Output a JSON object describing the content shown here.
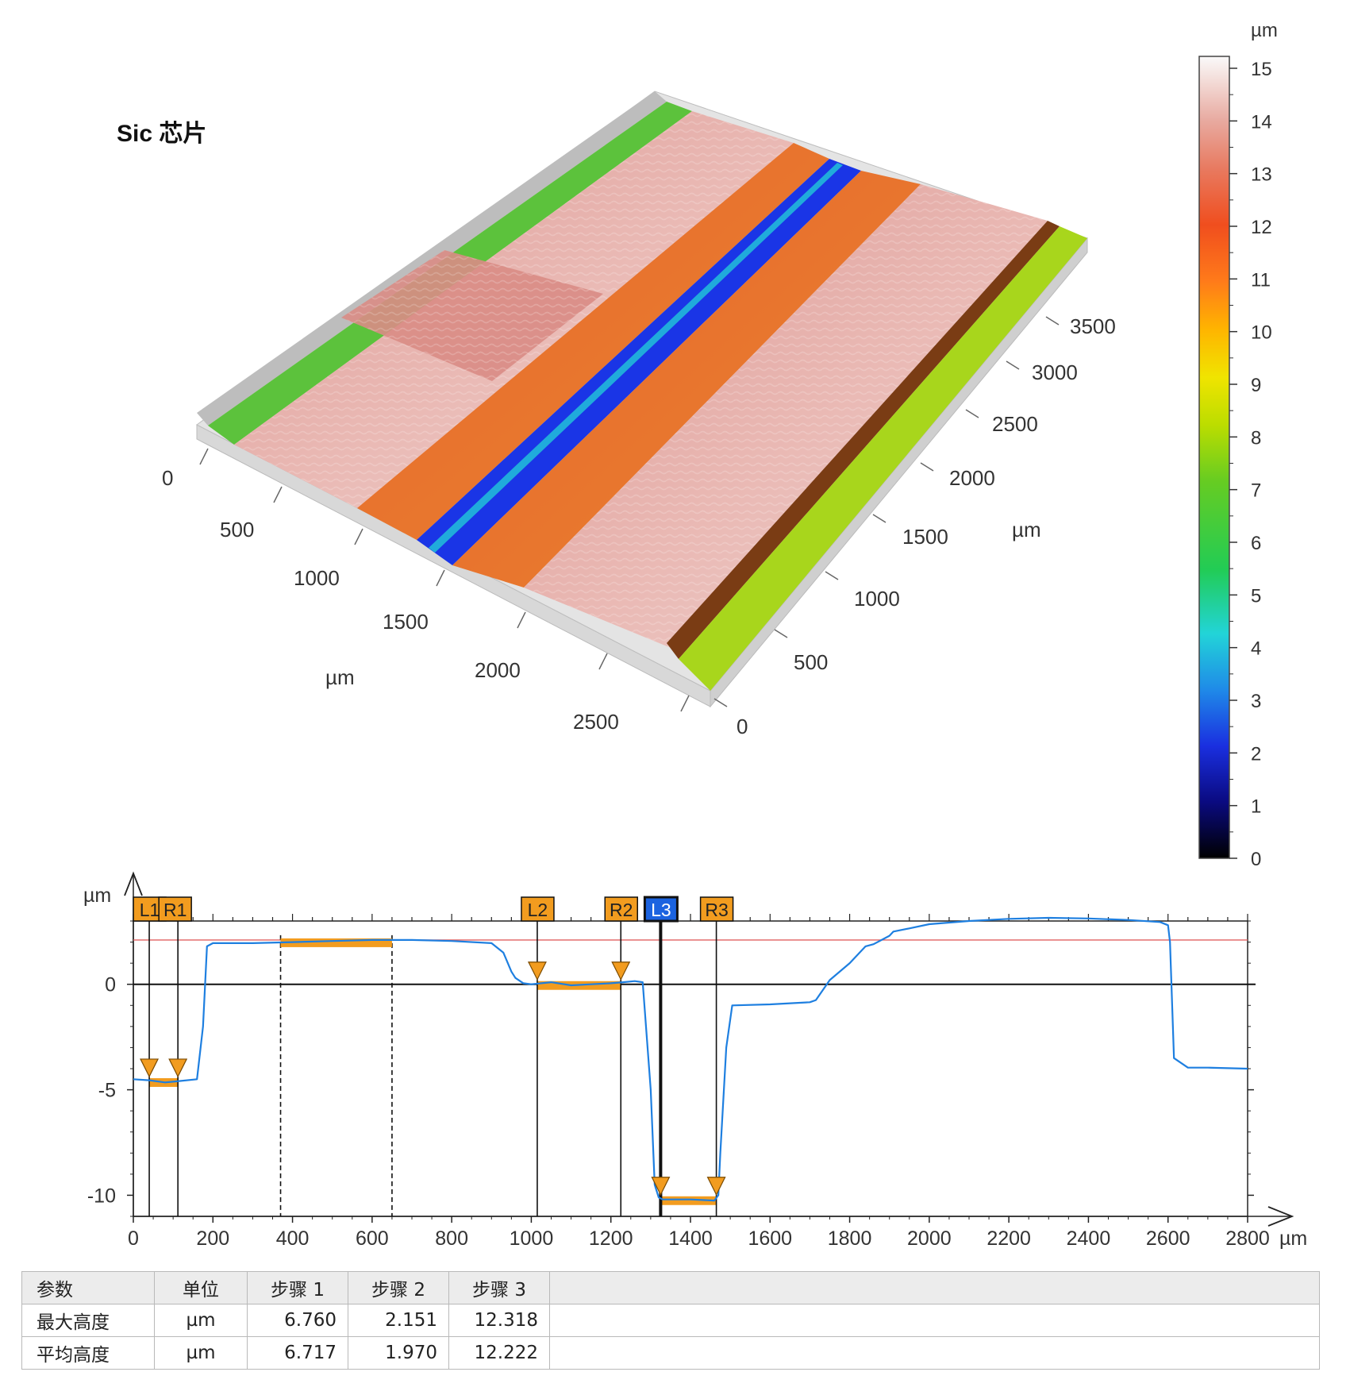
{
  "title": "Sic 芯片",
  "view3d": {
    "x_ticks": [
      "0",
      "500",
      "1000",
      "1500",
      "2000",
      "2500"
    ],
    "y_ticks": [
      "0",
      "500",
      "1000",
      "1500",
      "2000",
      "2500",
      "3000",
      "3500"
    ],
    "x_unit": "µm",
    "y_unit": "µm"
  },
  "colorbar": {
    "unit": "µm",
    "ticks": [
      "0",
      "1",
      "2",
      "3",
      "4",
      "5",
      "6",
      "7",
      "8",
      "9",
      "10",
      "11",
      "12",
      "13",
      "14",
      "15"
    ],
    "colors": [
      "#000000",
      "#0a0a80",
      "#1a2fe0",
      "#1f8ae8",
      "#22d4d8",
      "#22cc55",
      "#66cc22",
      "#bbdd00",
      "#f0e400",
      "#ffb400",
      "#ff7a1a",
      "#f04e1e",
      "#e87a60",
      "#e8aaa0",
      "#f3d8d6",
      "#fafafa"
    ]
  },
  "chart_data": {
    "type": "line",
    "xlabel": "µm",
    "ylabel": "µm",
    "xlim": [
      0,
      2800
    ],
    "ylim": [
      -11,
      3
    ],
    "x_ticks": [
      0,
      200,
      400,
      600,
      800,
      1000,
      1200,
      1400,
      1600,
      1800,
      2000,
      2200,
      2400,
      2600,
      2800
    ],
    "y_ticks": [
      0,
      -5,
      -10
    ],
    "reference_line_y": 2.1,
    "series": [
      {
        "x": [
          0,
          40,
          80,
          110,
          160,
          175,
          185,
          200,
          300,
          400,
          500,
          600,
          700,
          800,
          900,
          930,
          950,
          960,
          980,
          1000,
          1050,
          1100,
          1150,
          1200,
          1230,
          1260,
          1280,
          1300,
          1310,
          1320,
          1330,
          1400,
          1460,
          1470,
          1475,
          1490,
          1505,
          1600,
          1700,
          1715,
          1750,
          1800,
          1840,
          1860,
          1900,
          1910,
          1950,
          2000,
          2100,
          2200,
          2300,
          2400,
          2500,
          2580,
          2600,
          2605,
          2615,
          2650,
          2700,
          2800
        ],
        "y": [
          -4.5,
          -4.55,
          -4.65,
          -4.6,
          -4.5,
          -2.0,
          1.8,
          1.95,
          1.95,
          2.0,
          2.05,
          2.1,
          2.1,
          2.05,
          1.95,
          1.5,
          0.6,
          0.3,
          0.05,
          0.0,
          0.1,
          -0.05,
          0.0,
          0.05,
          0.1,
          0.15,
          0.1,
          -5.0,
          -9.5,
          -10.1,
          -10.2,
          -10.2,
          -10.25,
          -10.0,
          -8.0,
          -3.0,
          -1.0,
          -0.95,
          -0.85,
          -0.75,
          0.2,
          1.0,
          1.8,
          1.9,
          2.3,
          2.5,
          2.65,
          2.85,
          3.0,
          3.1,
          3.15,
          3.12,
          3.05,
          2.95,
          2.8,
          2.0,
          -3.5,
          -3.95,
          -3.95,
          -4.0
        ]
      }
    ],
    "markers": [
      {
        "label": "L1",
        "x": 40,
        "color": "#f29c1f",
        "text_color": "#222"
      },
      {
        "label": "R1",
        "x": 112,
        "color": "#f29c1f",
        "text_color": "#222"
      },
      {
        "label": "L2",
        "x": 1015,
        "color": "#f29c1f",
        "text_color": "#222"
      },
      {
        "label": "R2",
        "x": 1225,
        "color": "#f29c1f",
        "text_color": "#222"
      },
      {
        "label": "L3",
        "x": 1325,
        "color": "#1b63e0",
        "text_color": "#ffffff"
      },
      {
        "label": "R3",
        "x": 1465,
        "color": "#f29c1f",
        "text_color": "#222"
      }
    ],
    "reference_region": {
      "x": [
        370,
        650
      ],
      "y": 2.1
    },
    "step_bands": [
      {
        "x": [
          40,
          112
        ],
        "y": -4.6
      },
      {
        "x": [
          1015,
          1225
        ],
        "y": 0.0
      },
      {
        "x": [
          1325,
          1465
        ],
        "y": -10.2
      }
    ]
  },
  "table": {
    "headers": [
      "参数",
      "单位",
      "步骤 1",
      "步骤 2",
      "步骤 3"
    ],
    "rows": [
      [
        "最大高度",
        "µm",
        "6.760",
        "2.151",
        "12.318"
      ],
      [
        "平均高度",
        "µm",
        "6.717",
        "1.970",
        "12.222"
      ]
    ]
  }
}
